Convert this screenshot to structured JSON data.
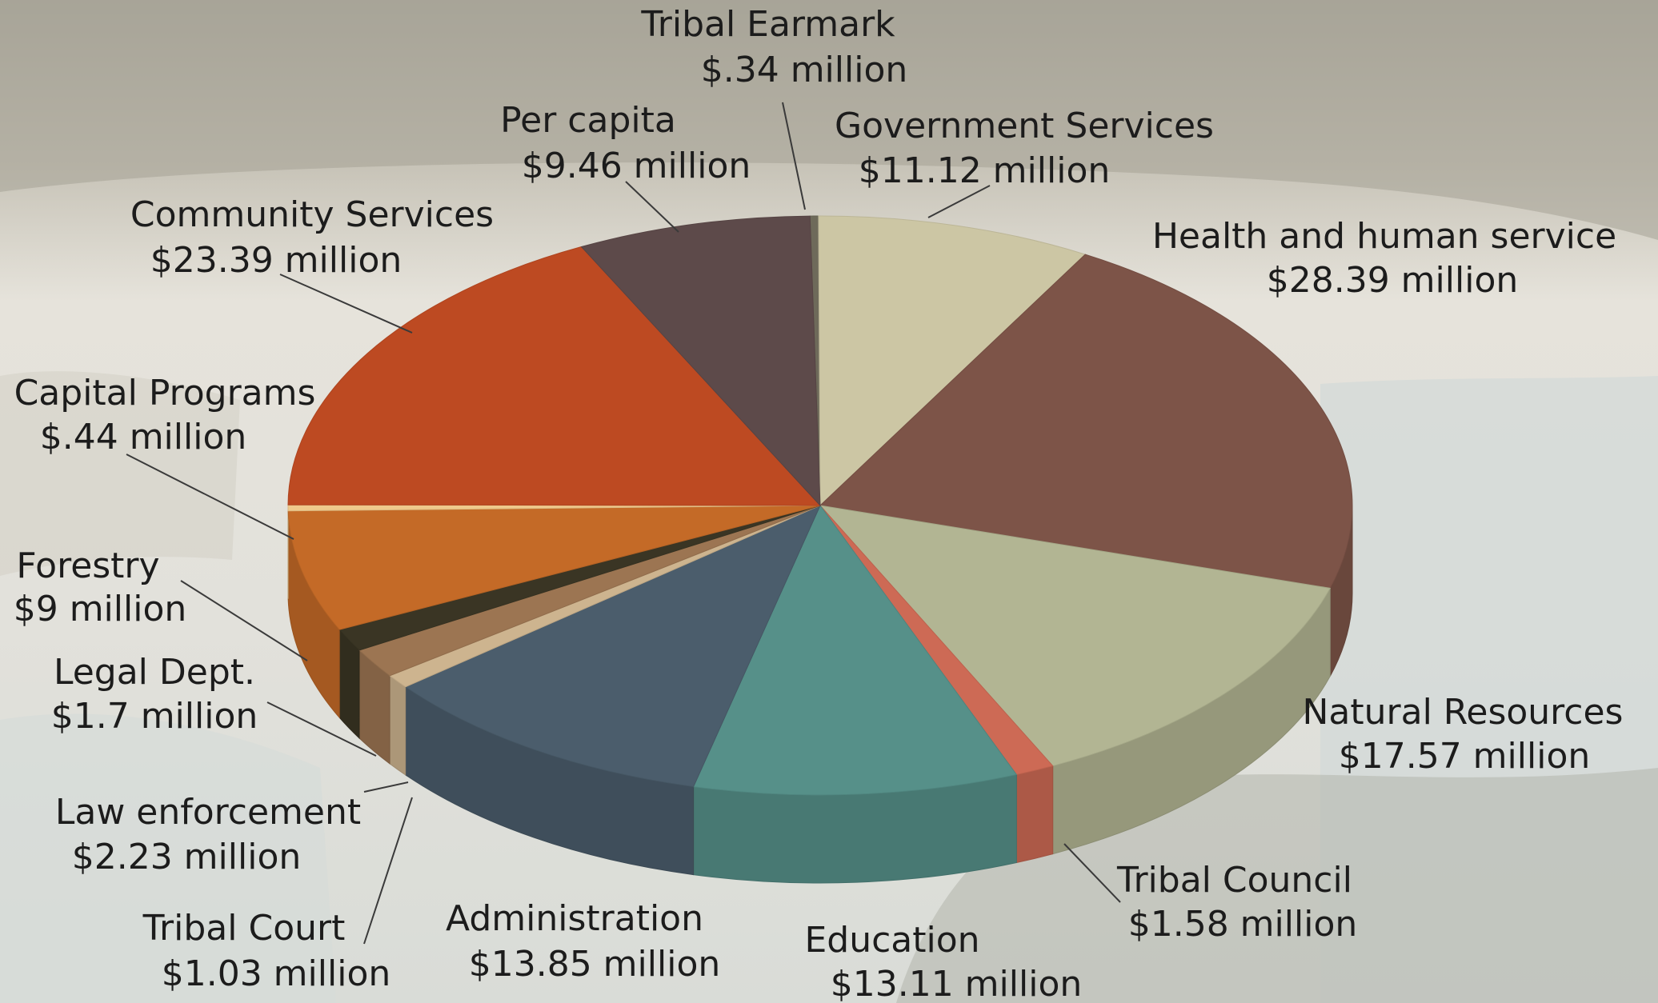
{
  "chart_data": {
    "type": "pie",
    "style": "3d",
    "unit": "million",
    "categories": [
      "Tribal Earmark",
      "Government Services",
      "Health and human service",
      "Natural Resources",
      "Tribal Council",
      "Education",
      "Administration",
      "Tribal Court",
      "Law enforcement",
      "Legal Dept.",
      "Forestry",
      "Capital Programs",
      "Community Services",
      "Per capita"
    ],
    "values": [
      0.34,
      11.12,
      28.39,
      17.57,
      1.58,
      13.11,
      13.85,
      1.03,
      2.23,
      1.7,
      9,
      0.44,
      23.39,
      9.46
    ],
    "value_labels": [
      "$.34 million",
      "$11.12 million",
      "$28.39 million",
      "$17.57 million",
      "$1.58 million",
      "$13.11 million",
      "$13.85 million",
      "$1.03 million",
      "$2.23 million",
      "$1.7 million",
      "$9 million",
      "$.44 million",
      "$23.39 million",
      "$9.46 million"
    ],
    "colors": [
      "#6e6a5a",
      "#ccc6a4",
      "#7d5448",
      "#b2b593",
      "#cd6a55",
      "#569089",
      "#4b5d6c",
      "#cdb48f",
      "#9c7552",
      "#3a3524",
      "#c46a27",
      "#efc98c",
      "#bd4a22",
      "#5d4a4a"
    ],
    "legend": "none",
    "labels_outside_with_leader_lines": true
  }
}
